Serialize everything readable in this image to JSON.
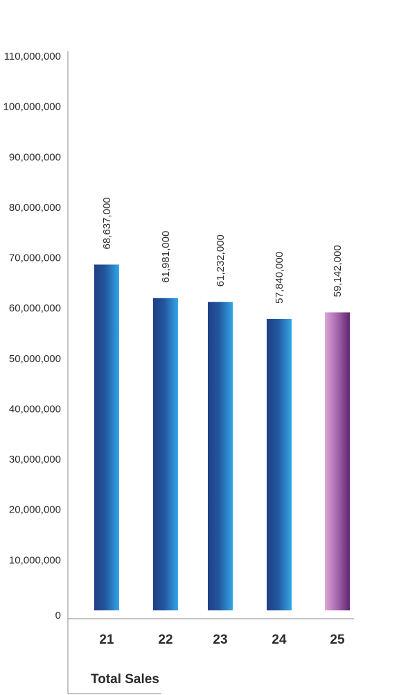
{
  "chart_data": {
    "type": "bar",
    "title": "",
    "xlabel": "",
    "ylabel": "",
    "footer_label": "Total Sales",
    "categories": [
      "21",
      "22",
      "23",
      "24",
      "25"
    ],
    "values": [
      68637000,
      61981000,
      61232000,
      57840000,
      59142000
    ],
    "value_labels": [
      "68,637,000",
      "61,981,000",
      "61,232,000",
      "57,840,000",
      "59,142,000"
    ],
    "ylim": [
      0,
      110000000
    ],
    "yticks": [
      0,
      10000000,
      20000000,
      30000000,
      40000000,
      50000000,
      60000000,
      70000000,
      80000000,
      90000000,
      100000000,
      110000000
    ],
    "ytick_labels": [
      "0",
      "10,000,000",
      "20,000,000",
      "30,000,000",
      "40,000,000",
      "50,000,000",
      "60,000,000",
      "70,000,000",
      "80,000,000",
      "90,000,000",
      "100,000,000",
      "110,000,000"
    ],
    "grid": false,
    "legend": "none",
    "colors": {
      "default_bar": [
        "#1f3f86",
        "#2f9fe0"
      ],
      "highlight_bar": [
        "#d8a2d6",
        "#6a2a78"
      ],
      "highlight_index": 4,
      "axis": "#8a8a8a",
      "text": "#2b2b2b"
    }
  }
}
